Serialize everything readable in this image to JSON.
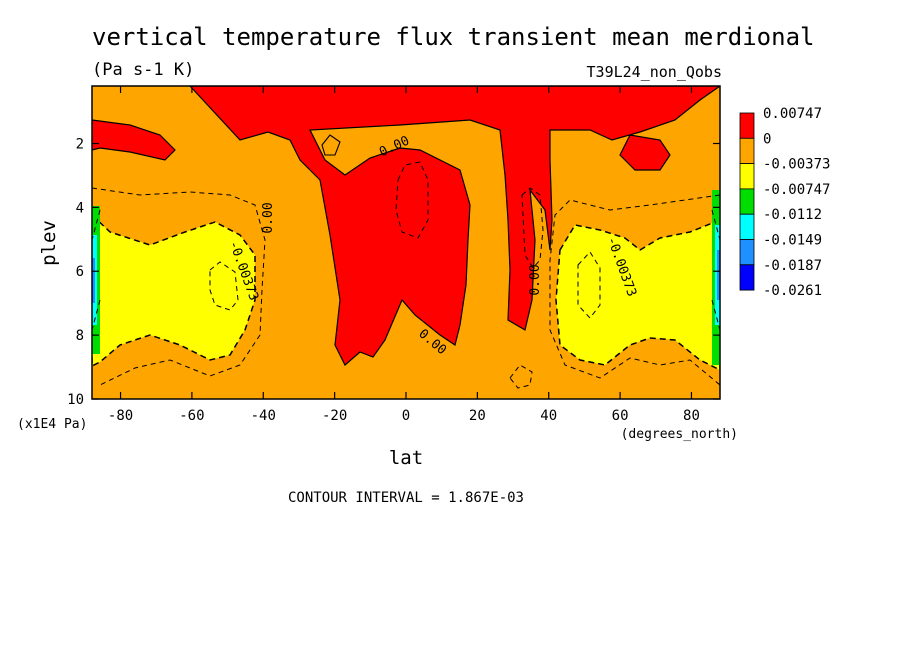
{
  "chart_data": {
    "type": "heatmap",
    "title": "vertical temperature flux transient mean merdional",
    "units": "(Pa s-1 K)",
    "run_label": "T39L24_non_Qobs",
    "xlabel": "lat",
    "x_units": "(degrees_north)",
    "ylabel": "plev",
    "y_units": "(x1E4 Pa)",
    "xlim": [
      -88,
      88
    ],
    "ylim": [
      10,
      0.2
    ],
    "x_ticks": [
      -80,
      -60,
      -40,
      -20,
      0,
      20,
      40,
      60,
      80
    ],
    "y_ticks": [
      2,
      4,
      6,
      8,
      10
    ],
    "footer": "CONTOUR INTERVAL = 1.867E-03",
    "contour_labels": [
      {
        "text": "0.00",
        "lat": -35,
        "plev": 4.4
      },
      {
        "text": "0.00",
        "lat": -3,
        "plev": 2.0
      },
      {
        "text": "0.00",
        "lat": 7,
        "plev": 8.0
      },
      {
        "text": "0.00",
        "lat": 37,
        "plev": 6.5
      },
      {
        "text": "-0.00373",
        "lat": -48,
        "plev": 5.7
      },
      {
        "text": "-0.00373",
        "lat": 61,
        "plev": 5.7
      }
    ],
    "colorbar": {
      "levels": [
        "0.00747",
        "0",
        "-0.00373",
        "-0.00747",
        "-0.0112",
        "-0.0149",
        "-0.0187",
        "-0.0261"
      ],
      "colors": [
        "#ff0000",
        "#ffa500",
        "#ffff00",
        "#00dd00",
        "#00ffff",
        "#1e90ff",
        "#0000ff"
      ]
    },
    "regions": [
      {
        "name": "Red (positive) over tropics",
        "level": "0 to 0.00747",
        "color": "#ff0000"
      },
      {
        "name": "Orange background",
        "level": "-0.00373 to 0",
        "color": "#ffa500"
      },
      {
        "name": "Yellow near poles mid-troposphere",
        "level": "-0.00747 to -0.00373",
        "color": "#ffff00"
      },
      {
        "name": "Edge bands near poles",
        "level": "below -0.00747",
        "color": "#00dd00"
      }
    ]
  }
}
